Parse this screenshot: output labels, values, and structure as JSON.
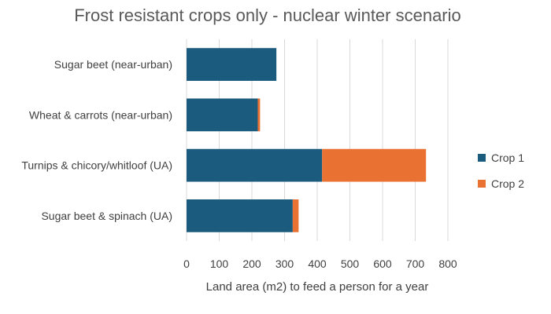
{
  "chart_data": {
    "type": "bar",
    "orientation": "horizontal",
    "stacked": true,
    "title": "Frost resistant crops only - nuclear winter scenario",
    "xlabel": "Land area (m2) to feed a person for a year",
    "ylabel": "",
    "categories": [
      "Sugar beet (near-urban)",
      "Wheat & carrots (near-urban)",
      "Turnips & chicory/whitloof (UA)",
      "Sugar beet & spinach (UA)"
    ],
    "series": [
      {
        "name": "Crop 1",
        "color": "#1b5c7e",
        "values": [
          275,
          218,
          415,
          325
        ]
      },
      {
        "name": "Crop 2",
        "color": "#e97132",
        "values": [
          0,
          7,
          318,
          18
        ]
      }
    ],
    "xlim": [
      0,
      800
    ],
    "xticks": [
      "0",
      "100",
      "200",
      "300",
      "400",
      "500",
      "600",
      "700",
      "800"
    ],
    "grid": true,
    "legend_position": "right"
  }
}
